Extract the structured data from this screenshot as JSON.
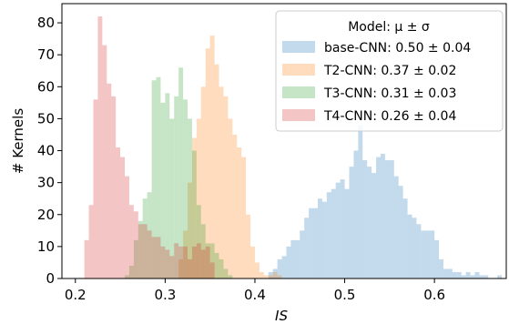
{
  "chart_data": {
    "type": "histogram",
    "xlabel": "IS",
    "ylabel": "# Kernels",
    "xlim": [
      0.185,
      0.68
    ],
    "ylim": [
      0,
      86
    ],
    "xticks": [
      0.2,
      0.3,
      0.4,
      0.5,
      0.6
    ],
    "xtick_labels": [
      "0.2",
      "0.3",
      "0.4",
      "0.5",
      "0.6"
    ],
    "yticks": [
      0,
      10,
      20,
      30,
      40,
      50,
      60,
      70,
      80
    ],
    "ytick_labels": [
      "0",
      "10",
      "20",
      "30",
      "40",
      "50",
      "60",
      "70",
      "80"
    ],
    "grid": false,
    "legend": {
      "title": "Model: μ ± σ",
      "placement": "top-right"
    },
    "series": [
      {
        "name": "base-CNN: 0.50 ± 0.04",
        "color": "#1f77b4",
        "bin_start": 0.415,
        "bin_width": 0.005,
        "counts": [
          2,
          3,
          6,
          7,
          10,
          12,
          12,
          15,
          19,
          22,
          22,
          25,
          24,
          27,
          28,
          30,
          31,
          28,
          35,
          40,
          48,
          37,
          35,
          33,
          38,
          39,
          37,
          37,
          32,
          29,
          25,
          20,
          19,
          17,
          15,
          15,
          15,
          12,
          6,
          3,
          3,
          2,
          2,
          1,
          2,
          1,
          2,
          1,
          1,
          0,
          0,
          1
        ]
      },
      {
        "name": "T2-CNN: 0.37 ± 0.02",
        "color": "#ff7f0e",
        "bin_start": 0.315,
        "bin_width": 0.005,
        "counts": [
          6,
          15,
          30,
          44,
          50,
          60,
          72,
          76,
          67,
          60,
          57,
          50,
          45,
          41,
          38,
          20,
          10,
          5,
          2,
          1,
          1,
          2,
          1
        ]
      },
      {
        "name": "T3-CNN: 0.31 ± 0.03",
        "color": "#2ca02c",
        "bin_start": 0.255,
        "bin_width": 0.005,
        "counts": [
          1,
          4,
          12,
          18,
          25,
          27,
          62,
          63,
          55,
          58,
          50,
          57,
          66,
          56,
          50,
          40,
          23,
          17,
          11,
          11,
          8,
          6,
          3,
          1
        ]
      },
      {
        "name": "T4-CNN: 0.26 ± 0.04",
        "color": "#d62728",
        "bin_start": 0.21,
        "bin_width": 0.005,
        "counts": [
          12,
          23,
          56,
          82,
          73,
          61,
          57,
          41,
          38,
          32,
          23,
          21,
          17,
          17,
          15,
          13,
          13,
          10,
          9,
          7,
          11,
          10,
          10,
          6,
          10,
          11,
          9,
          10,
          5
        ]
      }
    ]
  }
}
